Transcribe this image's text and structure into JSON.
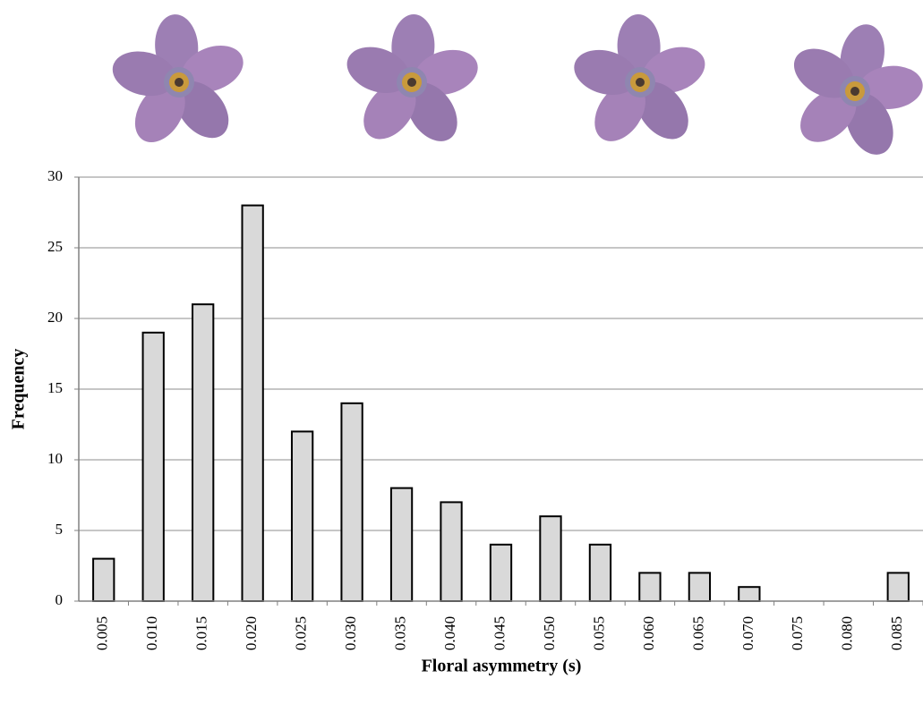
{
  "chart_data": {
    "type": "bar",
    "x_label": "Floral asymmetry (s)",
    "y_label": "Frequency",
    "categories": [
      "0.005",
      "0.010",
      "0.015",
      "0.020",
      "0.025",
      "0.030",
      "0.035",
      "0.040",
      "0.045",
      "0.050",
      "0.055",
      "0.060",
      "0.065",
      "0.070",
      "0.075",
      "0.080",
      "0.085"
    ],
    "values": [
      3,
      19,
      21,
      28,
      12,
      14,
      8,
      7,
      4,
      6,
      4,
      2,
      2,
      1,
      0,
      0,
      2
    ],
    "color": "#d9d9d9",
    "ylim": [
      0,
      30
    ],
    "yticks": [
      0,
      5,
      10,
      15,
      20,
      25,
      30
    ],
    "grid": true
  }
}
